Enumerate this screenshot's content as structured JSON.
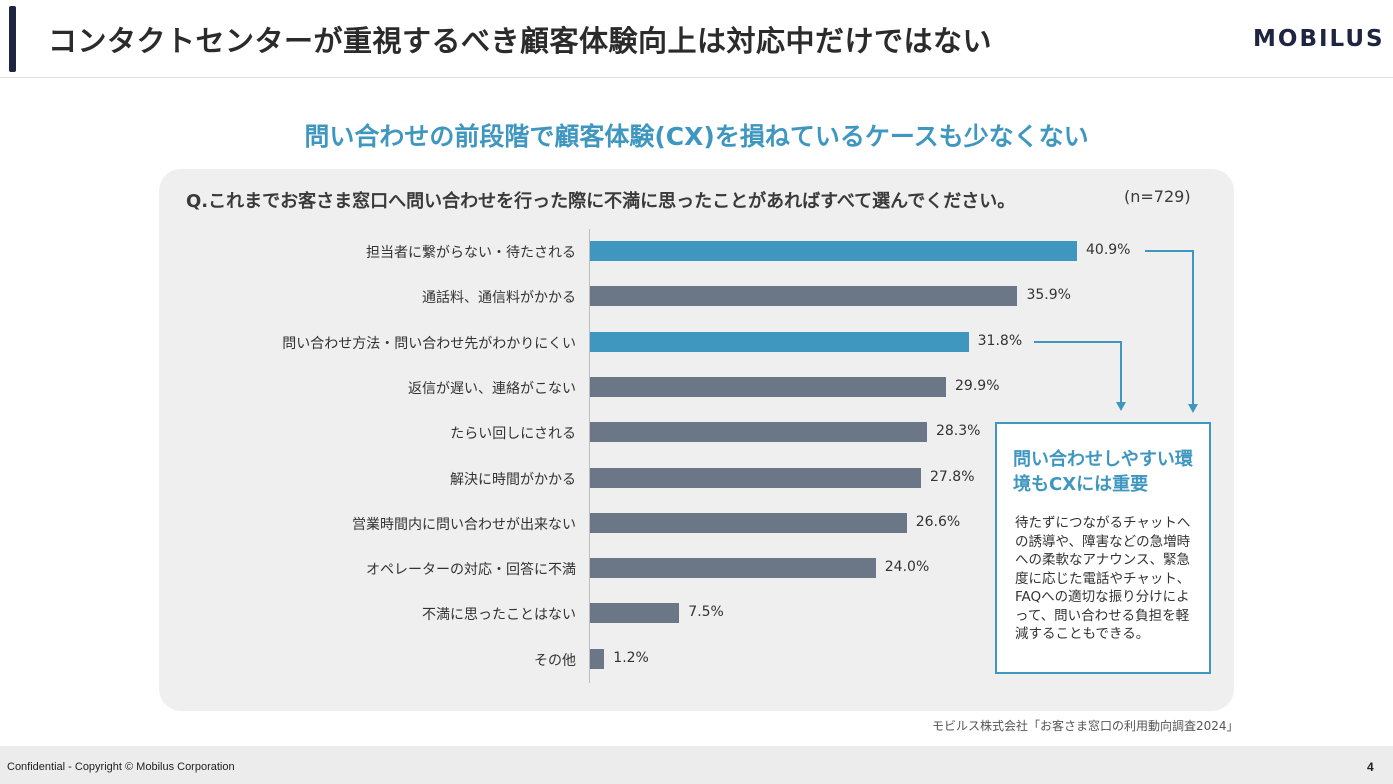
{
  "header": {
    "title": "コンタクトセンターが重視するべき顧客体験向上は対応中だけではない",
    "logo": "MOBILUS"
  },
  "subtitle": "問い合わせの前段階で顧客体験(CX)を損ねているケースも少なくない",
  "question": "Q.これまでお客さま窓口へ問い合わせを行った際に不満に思ったことがあればすべて選んでください。",
  "sample_size": "(n=729)",
  "colors": {
    "highlight": "#3f97c0",
    "normal": "#6b7686",
    "accent": "#1f2540"
  },
  "chart_data": {
    "type": "bar",
    "orientation": "horizontal",
    "categories": [
      "担当者に繋がらない・待たされる",
      "通話料、通信料がかかる",
      "問い合わせ方法・問い合わせ先がわかりにくい",
      "返信が遅い、連絡がこない",
      "たらい回しにされる",
      "解決に時間がかかる",
      "営業時間内に問い合わせが出来ない",
      "オペレーターの対応・回答に不満",
      "不満に思ったことはない",
      "その他"
    ],
    "values": [
      40.9,
      35.9,
      31.8,
      29.9,
      28.3,
      27.8,
      26.6,
      24.0,
      7.5,
      1.2
    ],
    "labels": [
      "40.9%",
      "35.9%",
      "31.8%",
      "29.9%",
      "28.3%",
      "27.8%",
      "26.6%",
      "24.0%",
      "7.5%",
      "1.2%"
    ],
    "highlighted": [
      true,
      false,
      true,
      false,
      false,
      false,
      false,
      false,
      false,
      false
    ],
    "unit": "%",
    "xlim": [
      0,
      100
    ]
  },
  "callout": {
    "title": "問い合わせしやすい環境もCXには重要",
    "body": "待たずにつながるチャットへの誘導や、障害などの急増時への柔軟なアナウンス、緊急度に応じた電話やチャット、FAQへの適切な振り分けによって、問い合わせる負担を軽減することもできる。"
  },
  "source": "モビルス株式会社「お客さま窓口の利用動向調査2024」",
  "footer": {
    "copyright": "Confidential - Copyright © Mobilus Corporation",
    "page_number": "4"
  }
}
